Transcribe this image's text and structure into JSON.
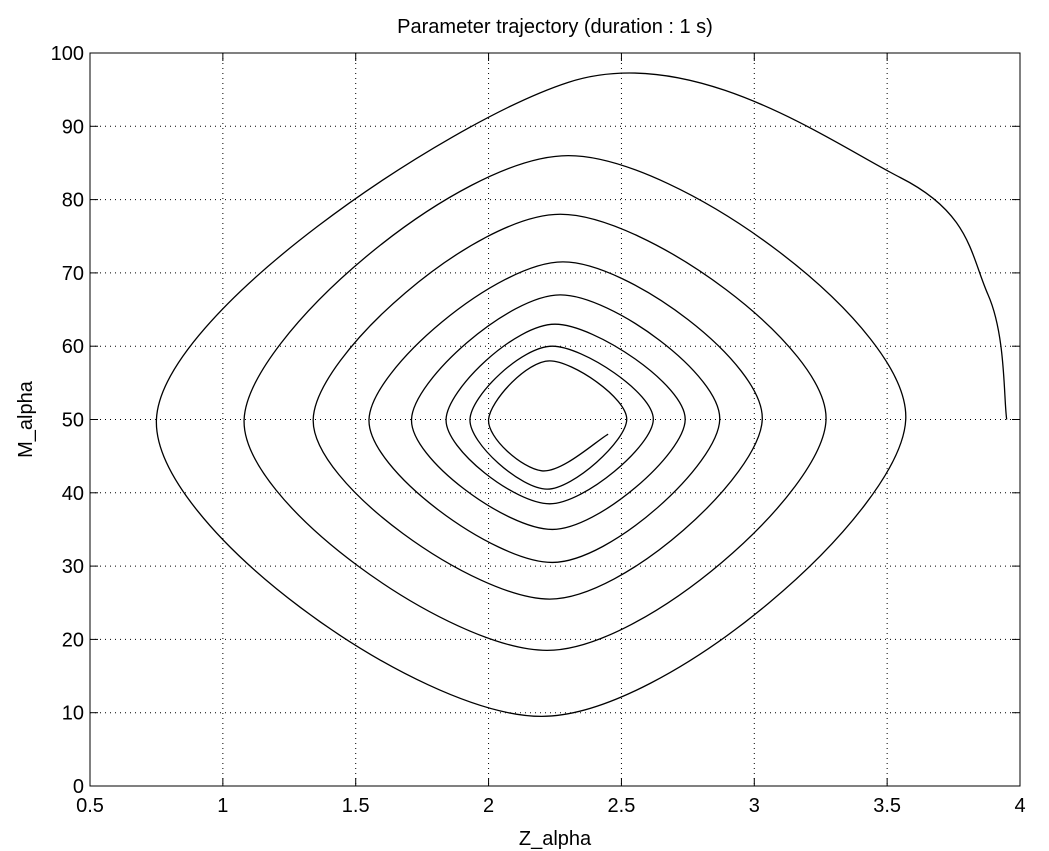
{
  "chart_data": {
    "type": "line",
    "title": "Parameter trajectory  (duration : 1 s)",
    "xlabel": "Z_alpha",
    "ylabel": "M_alpha",
    "xlim": [
      0.5,
      4
    ],
    "ylim": [
      0,
      100
    ],
    "xticks": [
      "0.5",
      "1",
      "1.5",
      "2",
      "2.5",
      "3",
      "3.5",
      "4"
    ],
    "yticks": [
      "0",
      "10",
      "20",
      "30",
      "40",
      "50",
      "60",
      "70",
      "80",
      "90",
      "100"
    ],
    "grid": true,
    "grid_style": "dotted",
    "line_color": "#000000",
    "series": [
      {
        "x": [
          3.95,
          3.88,
          3.55,
          2.3,
          0.75,
          2.2,
          3.57,
          2.3,
          1.08,
          2.22,
          3.27,
          2.27,
          1.34,
          2.23,
          3.03,
          2.28,
          1.55,
          2.24,
          2.87,
          2.27,
          1.71,
          2.24,
          2.74,
          2.25,
          1.84,
          2.23,
          2.62,
          2.24,
          1.93,
          2.22,
          2.52,
          2.23,
          2.0,
          2.2,
          2.45
        ],
        "y": [
          50,
          67,
          83,
          96,
          50,
          9.5,
          50,
          86,
          50,
          18.5,
          50,
          78,
          50,
          25.5,
          50,
          71.5,
          50,
          30.5,
          50,
          67,
          50,
          35,
          50,
          63,
          50,
          38.5,
          50,
          60,
          50,
          40.5,
          50,
          58,
          50,
          43,
          48
        ]
      }
    ]
  }
}
